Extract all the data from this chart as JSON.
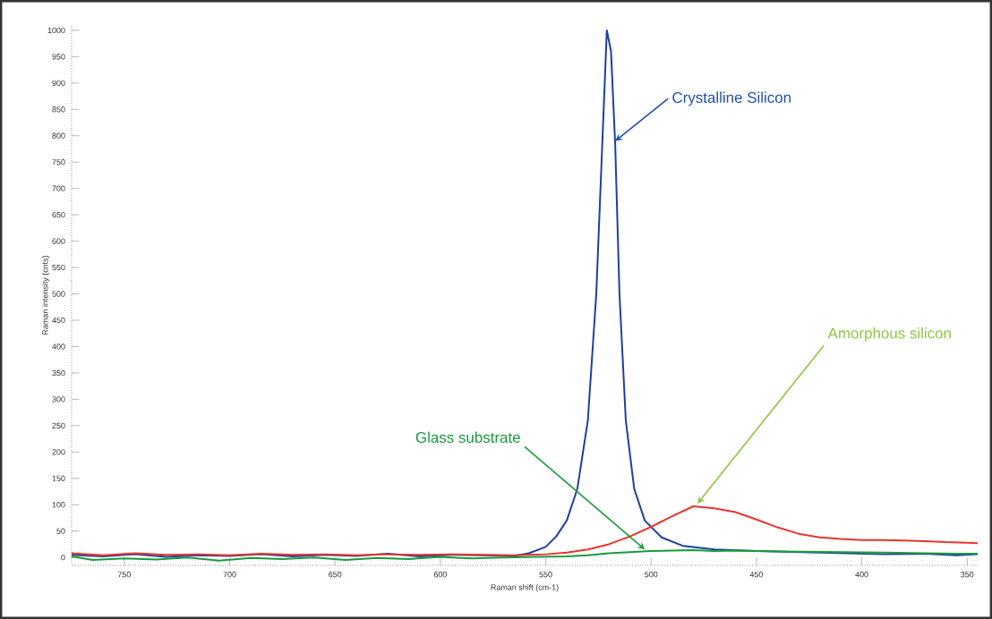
{
  "chart_data": {
    "type": "line",
    "xlabel": "Raman shift (cm-1)",
    "ylabel": "Raman intensity (cnts)",
    "xlim": [
      775,
      345
    ],
    "ylim": [
      -15,
      1010
    ],
    "xticks": [
      750,
      700,
      650,
      600,
      550,
      500,
      450,
      400,
      350
    ],
    "yticks": [
      0,
      50,
      100,
      150,
      200,
      250,
      300,
      350,
      400,
      450,
      500,
      550,
      600,
      650,
      700,
      750,
      800,
      850,
      900,
      950,
      1000
    ],
    "grid": false,
    "marker": "none",
    "line_style": "solid",
    "series": [
      {
        "color": "#1f3fa0",
        "x": [
          775,
          760,
          745,
          730,
          715,
          700,
          685,
          670,
          655,
          640,
          625,
          610,
          595,
          580,
          565,
          558,
          550,
          545,
          540,
          535,
          530,
          526,
          523,
          521,
          519,
          517,
          515,
          512,
          508,
          503,
          495,
          485,
          470,
          450,
          430,
          410,
          390,
          370,
          355,
          345
        ],
        "values": [
          5,
          2,
          6,
          1,
          4,
          3,
          6,
          2,
          5,
          3,
          7,
          2,
          5,
          4,
          3,
          8,
          20,
          40,
          70,
          130,
          260,
          500,
          800,
          1000,
          960,
          780,
          500,
          260,
          130,
          70,
          38,
          22,
          15,
          12,
          10,
          8,
          6,
          7,
          4,
          6
        ]
      },
      {
        "color": "#e8352e",
        "x": [
          775,
          760,
          745,
          730,
          715,
          700,
          685,
          670,
          655,
          640,
          625,
          610,
          595,
          580,
          565,
          550,
          540,
          530,
          520,
          510,
          500,
          490,
          480,
          470,
          460,
          450,
          440,
          430,
          420,
          410,
          400,
          390,
          380,
          370,
          360,
          350,
          345
        ],
        "values": [
          8,
          4,
          8,
          5,
          6,
          4,
          7,
          5,
          6,
          4,
          6,
          5,
          6,
          5,
          4,
          6,
          9,
          15,
          25,
          40,
          58,
          78,
          97,
          93,
          86,
          72,
          57,
          45,
          38,
          35,
          33,
          33,
          32,
          31,
          29,
          28,
          27
        ]
      },
      {
        "color": "#1a9a3a",
        "x": [
          775,
          765,
          750,
          735,
          720,
          705,
          690,
          675,
          660,
          645,
          630,
          615,
          600,
          585,
          570,
          555,
          540,
          530,
          520,
          510,
          500,
          490,
          480,
          470,
          460,
          450,
          430,
          410,
          390,
          370,
          355,
          345
        ],
        "values": [
          2,
          -5,
          -2,
          -4,
          0,
          -6,
          -1,
          -3,
          0,
          -5,
          -1,
          -3,
          1,
          -2,
          0,
          1,
          2,
          4,
          8,
          10,
          12,
          13,
          14,
          12,
          13,
          12,
          11,
          10,
          9,
          8,
          7,
          7
        ]
      }
    ],
    "annotations": [
      {
        "text": "Crystalline Silicon",
        "x": 517,
        "y": 790
      },
      {
        "text": "Amorphous silicon",
        "x": 478,
        "y": 102
      },
      {
        "text": "Glass substrate",
        "x": 503,
        "y": 15
      }
    ]
  }
}
